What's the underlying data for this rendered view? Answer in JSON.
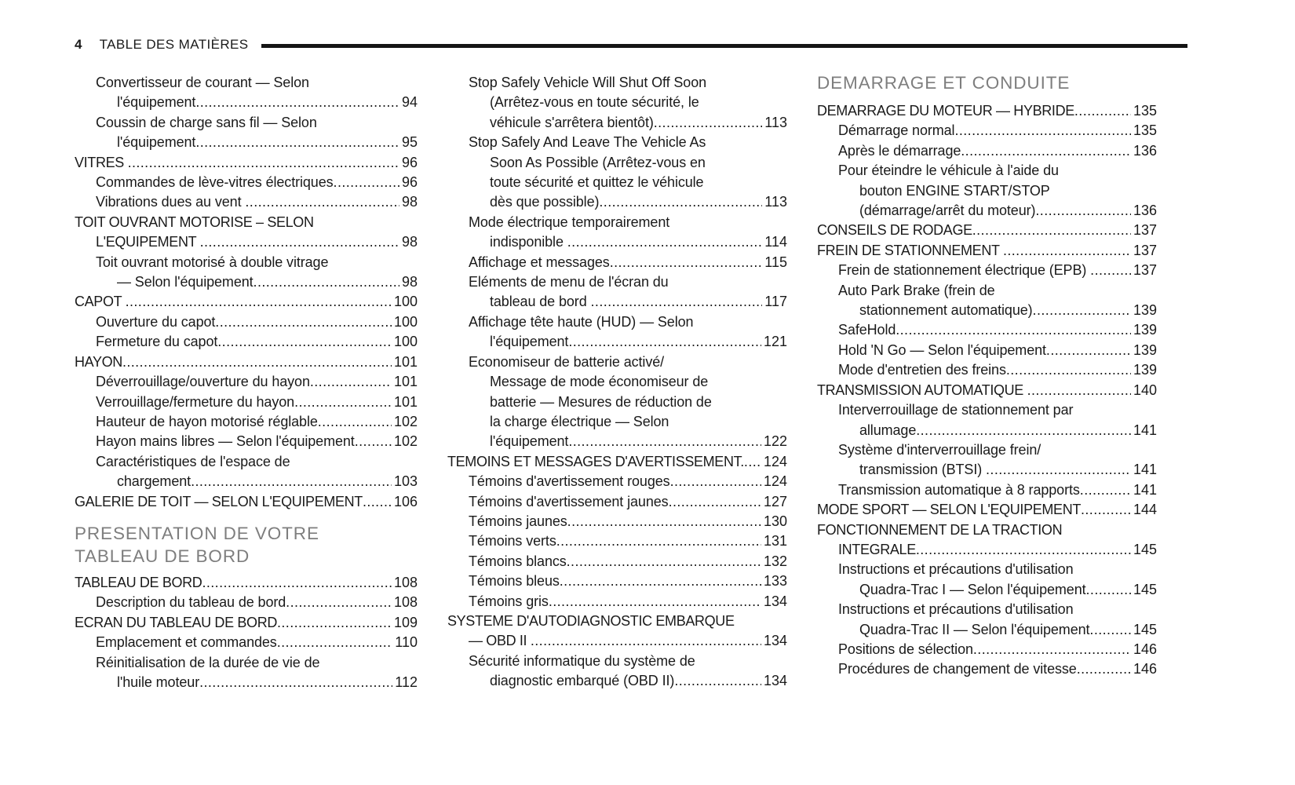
{
  "page": {
    "number": "4",
    "title": "TABLE DES MATIÈRES"
  },
  "colors": {
    "text": "#1a1a1a",
    "section_header": "#7e7e7e",
    "rule": "#141414",
    "background": "#ffffff"
  },
  "columns": [
    {
      "items": [
        {
          "type": "entry",
          "level": 1,
          "lines": [
            "Convertisseur de courant — Selon",
            "l'équipement"
          ],
          "page": "94"
        },
        {
          "type": "entry",
          "level": 1,
          "lines": [
            "Coussin de charge sans fil — Selon",
            "l'équipement"
          ],
          "page": "95"
        },
        {
          "type": "entry",
          "level": 0,
          "lines": [
            "VITRES "
          ],
          "page": "96"
        },
        {
          "type": "entry",
          "level": 1,
          "lines": [
            "Commandes de lève-vitres électriques"
          ],
          "page": "96"
        },
        {
          "type": "entry",
          "level": 1,
          "lines": [
            "Vibrations dues au vent "
          ],
          "page": "98"
        },
        {
          "type": "entry",
          "level": 0,
          "lines": [
            "TOIT OUVRANT MOTORISE – SELON",
            "L'EQUIPEMENT "
          ],
          "page": "98"
        },
        {
          "type": "entry",
          "level": 1,
          "lines": [
            "Toit ouvrant motorisé à double vitrage",
            "— Selon l'équipement"
          ],
          "page": "98"
        },
        {
          "type": "entry",
          "level": 0,
          "lines": [
            "CAPOT "
          ],
          "page": "100"
        },
        {
          "type": "entry",
          "level": 1,
          "lines": [
            "Ouverture du capot"
          ],
          "page": "100"
        },
        {
          "type": "entry",
          "level": 1,
          "lines": [
            "Fermeture du capot"
          ],
          "page": "100"
        },
        {
          "type": "entry",
          "level": 0,
          "lines": [
            "HAYON"
          ],
          "page": "101"
        },
        {
          "type": "entry",
          "level": 1,
          "lines": [
            "Déverrouillage/ouverture du hayon"
          ],
          "page": "101"
        },
        {
          "type": "entry",
          "level": 1,
          "lines": [
            "Verrouillage/fermeture du hayon"
          ],
          "page": "101"
        },
        {
          "type": "entry",
          "level": 1,
          "lines": [
            "Hauteur de hayon motorisé réglable"
          ],
          "page": "102"
        },
        {
          "type": "entry",
          "level": 1,
          "lines": [
            "Hayon mains libres — Selon l'équipement"
          ],
          "page": "102"
        },
        {
          "type": "entry",
          "level": 1,
          "lines": [
            "Caractéristiques de l'espace de",
            "chargement"
          ],
          "page": "103"
        },
        {
          "type": "entry",
          "level": 0,
          "lines": [
            "GALERIE DE TOIT — SELON L'EQUIPEMENT"
          ],
          "page": "106"
        },
        {
          "type": "header",
          "lines": [
            "PRESENTATION DE VOTRE",
            "TABLEAU DE BORD"
          ]
        },
        {
          "type": "entry",
          "level": 0,
          "lines": [
            "TABLEAU DE BORD"
          ],
          "page": "108"
        },
        {
          "type": "entry",
          "level": 1,
          "lines": [
            "Description du tableau de bord"
          ],
          "page": "108"
        },
        {
          "type": "entry",
          "level": 0,
          "lines": [
            "ECRAN DU TABLEAU DE BORD"
          ],
          "page": "109"
        },
        {
          "type": "entry",
          "level": 1,
          "lines": [
            "Emplacement et commandes"
          ],
          "page": "110"
        },
        {
          "type": "entry",
          "level": 1,
          "lines": [
            "Réinitialisation de la durée de vie de",
            "l'huile moteur"
          ],
          "page": "112"
        }
      ]
    },
    {
      "items": [
        {
          "type": "entry",
          "level": 1,
          "lines": [
            "Stop Safely Vehicle Will Shut Off Soon",
            "(Arrêtez-vous en toute sécurité, le",
            "véhicule s'arrêtera bientôt)"
          ],
          "page": "113"
        },
        {
          "type": "entry",
          "level": 1,
          "lines": [
            "Stop Safely And Leave The Vehicle As",
            "Soon As Possible (Arrêtez-vous en",
            "toute sécurité et quittez le véhicule",
            "dès que possible)"
          ],
          "page": "113"
        },
        {
          "type": "entry",
          "level": 1,
          "lines": [
            "Mode électrique temporairement",
            "indisponible "
          ],
          "page": "114"
        },
        {
          "type": "entry",
          "level": 1,
          "lines": [
            "Affichage et messages"
          ],
          "page": "115"
        },
        {
          "type": "entry",
          "level": 1,
          "lines": [
            "Eléments de menu de l'écran du",
            "tableau de bord "
          ],
          "page": "117"
        },
        {
          "type": "entry",
          "level": 1,
          "lines": [
            "Affichage tête haute (HUD) — Selon",
            "l'équipement"
          ],
          "page": "121"
        },
        {
          "type": "entry",
          "level": 1,
          "lines": [
            "Economiseur de batterie activé/",
            "Message de mode économiseur de",
            "batterie — Mesures de réduction de",
            "la charge électrique — Selon",
            "l'équipement"
          ],
          "page": "122"
        },
        {
          "type": "entry",
          "level": 0,
          "lines": [
            "TEMOINS ET MESSAGES D'AVERTISSEMENT."
          ],
          "page": "124"
        },
        {
          "type": "entry",
          "level": 1,
          "lines": [
            "Témoins d'avertissement rouges"
          ],
          "page": "124"
        },
        {
          "type": "entry",
          "level": 1,
          "lines": [
            "Témoins d'avertissement jaunes"
          ],
          "page": "127"
        },
        {
          "type": "entry",
          "level": 1,
          "lines": [
            "Témoins jaunes"
          ],
          "page": "130"
        },
        {
          "type": "entry",
          "level": 1,
          "lines": [
            "Témoins verts"
          ],
          "page": "131"
        },
        {
          "type": "entry",
          "level": 1,
          "lines": [
            "Témoins blancs"
          ],
          "page": "132"
        },
        {
          "type": "entry",
          "level": 1,
          "lines": [
            "Témoins bleus"
          ],
          "page": "133"
        },
        {
          "type": "entry",
          "level": 1,
          "lines": [
            "Témoins gris"
          ],
          "page": "134"
        },
        {
          "type": "entry",
          "level": 0,
          "lines": [
            "SYSTEME D'AUTODIAGNOSTIC EMBARQUE",
            "— OBD II "
          ],
          "page": "134"
        },
        {
          "type": "entry",
          "level": 1,
          "lines": [
            "Sécurité informatique du système de",
            "diagnostic embarqué (OBD II)"
          ],
          "page": "134"
        }
      ]
    },
    {
      "items": [
        {
          "type": "header",
          "lines": [
            "DEMARRAGE ET CONDUITE"
          ]
        },
        {
          "type": "entry",
          "level": 0,
          "lines": [
            "DEMARRAGE DU MOTEUR — HYBRIDE"
          ],
          "page": "135"
        },
        {
          "type": "entry",
          "level": 1,
          "lines": [
            "Démarrage normal"
          ],
          "page": "135"
        },
        {
          "type": "entry",
          "level": 1,
          "lines": [
            "Après le démarrage"
          ],
          "page": "136"
        },
        {
          "type": "entry",
          "level": 1,
          "lines": [
            "Pour éteindre le véhicule à l'aide du",
            "bouton ENGINE START/STOP",
            "(démarrage/arrêt du moteur)"
          ],
          "page": "136"
        },
        {
          "type": "entry",
          "level": 0,
          "lines": [
            "CONSEILS DE RODAGE"
          ],
          "page": "137"
        },
        {
          "type": "entry",
          "level": 0,
          "lines": [
            "FREIN DE STATIONNEMENT "
          ],
          "page": "137"
        },
        {
          "type": "entry",
          "level": 1,
          "lines": [
            "Frein de stationnement électrique (EPB) "
          ],
          "page": "137"
        },
        {
          "type": "entry",
          "level": 1,
          "lines": [
            "Auto Park Brake (frein de",
            "stationnement automatique)"
          ],
          "page": "139"
        },
        {
          "type": "entry",
          "level": 1,
          "lines": [
            "SafeHold"
          ],
          "page": "139"
        },
        {
          "type": "entry",
          "level": 1,
          "lines": [
            "Hold 'N Go — Selon l'équipement"
          ],
          "page": "139"
        },
        {
          "type": "entry",
          "level": 1,
          "lines": [
            "Mode d'entretien des freins"
          ],
          "page": "139"
        },
        {
          "type": "entry",
          "level": 0,
          "lines": [
            "TRANSMISSION AUTOMATIQUE "
          ],
          "page": "140"
        },
        {
          "type": "entry",
          "level": 1,
          "lines": [
            "Interverrouillage de stationnement par",
            "allumage"
          ],
          "page": "141"
        },
        {
          "type": "entry",
          "level": 1,
          "lines": [
            "Système d'interverrouillage frein/",
            "transmission (BTSI) "
          ],
          "page": "141"
        },
        {
          "type": "entry",
          "level": 1,
          "lines": [
            "Transmission automatique à 8 rapports"
          ],
          "page": "141"
        },
        {
          "type": "entry",
          "level": 0,
          "lines": [
            "MODE SPORT — SELON L'EQUIPEMENT"
          ],
          "page": "144"
        },
        {
          "type": "entry",
          "level": 0,
          "lines": [
            "FONCTIONNEMENT DE LA TRACTION",
            "INTEGRALE"
          ],
          "page": "145"
        },
        {
          "type": "entry",
          "level": 1,
          "lines": [
            "Instructions et précautions d'utilisation",
            "Quadra-Trac I — Selon l'équipement"
          ],
          "page": "145"
        },
        {
          "type": "entry",
          "level": 1,
          "lines": [
            "Instructions et précautions d'utilisation",
            "Quadra-Trac II — Selon l'équipement"
          ],
          "page": "145"
        },
        {
          "type": "entry",
          "level": 1,
          "lines": [
            "Positions de sélection"
          ],
          "page": "146"
        },
        {
          "type": "entry",
          "level": 1,
          "lines": [
            "Procédures de changement de vitesse"
          ],
          "page": "146"
        }
      ]
    }
  ]
}
